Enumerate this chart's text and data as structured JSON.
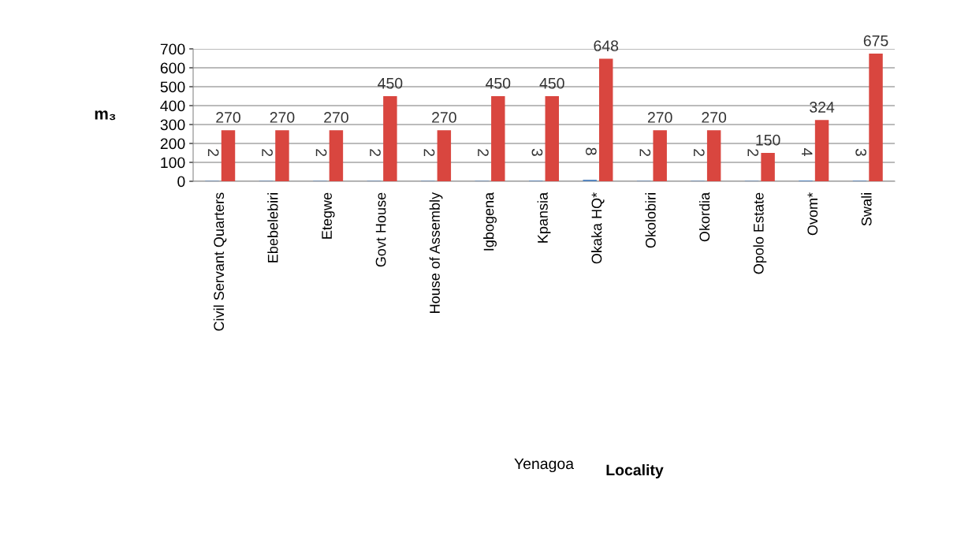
{
  "chart_data": {
    "type": "bar",
    "ylabel": "m₃",
    "annotations": [
      "Yenagoa",
      "Locality"
    ],
    "categories": [
      "Civil Servant Quarters",
      "Ebebelebiri",
      "Etegwe",
      "Govt House",
      "House of Assembly",
      "Igbogena",
      "Kpansia",
      "Okaka HQ*",
      "Okolobiri",
      "Okordia",
      "Opolo Estate",
      "Ovom*",
      "Swali"
    ],
    "series": [
      {
        "color": "#4f81bd",
        "values": [
          2,
          2,
          2,
          2,
          2,
          2,
          3,
          8,
          2,
          2,
          2,
          4,
          3
        ]
      },
      {
        "color": "#d9463f",
        "values": [
          270,
          270,
          270,
          450,
          270,
          450,
          450,
          648,
          270,
          270,
          150,
          324,
          675
        ]
      }
    ],
    "ylim": [
      0,
      700
    ],
    "yticks": [
      0,
      100,
      200,
      300,
      400,
      500,
      600,
      700
    ],
    "grid": "y",
    "data_labels": true,
    "legend": false
  }
}
